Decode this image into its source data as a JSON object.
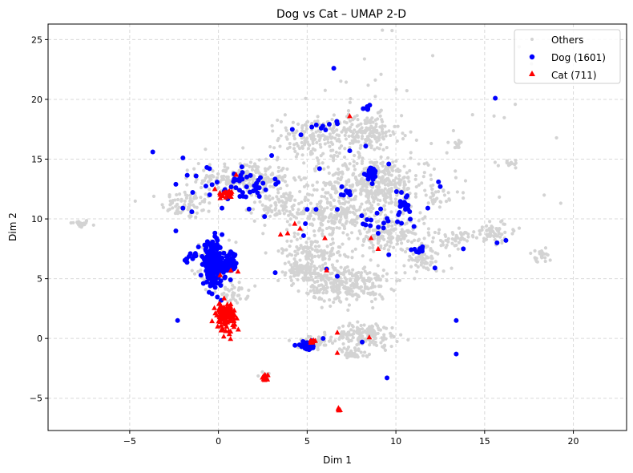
{
  "chart_data": {
    "type": "scatter",
    "title": "Dog vs Cat – UMAP 2-D",
    "xlabel": "Dim 1",
    "ylabel": "Dim 2",
    "xlim": [
      -9.6,
      23.0
    ],
    "ylim": [
      -7.7,
      26.3
    ],
    "xticks": [
      -5,
      0,
      5,
      10,
      15,
      20
    ],
    "yticks": [
      -5,
      0,
      5,
      10,
      15,
      20,
      25
    ],
    "grid": true,
    "legend_position": "top-right",
    "series": [
      {
        "name": "Others",
        "marker": "circle-small",
        "color": "#d3d3d3",
        "clusters": [
          {
            "cx": -7.8,
            "cy": 9.6,
            "rx": 0.5,
            "ry": 0.3,
            "n": 25
          },
          {
            "cx": -1.8,
            "cy": 11.2,
            "rx": 1.3,
            "ry": 1.1,
            "n": 80
          },
          {
            "cx": 1.5,
            "cy": 13.4,
            "rx": 2.4,
            "ry": 1.2,
            "n": 240
          },
          {
            "cx": 3.2,
            "cy": 11.0,
            "rx": 1.3,
            "ry": 1.2,
            "n": 90
          },
          {
            "cx": -0.2,
            "cy": 6.3,
            "rx": 1.0,
            "ry": 1.6,
            "n": 90
          },
          {
            "cx": 0.9,
            "cy": 3.8,
            "rx": 0.7,
            "ry": 0.8,
            "n": 40
          },
          {
            "cx": 5.4,
            "cy": 16.8,
            "rx": 1.8,
            "ry": 1.6,
            "n": 150
          },
          {
            "cx": 8.3,
            "cy": 17.2,
            "rx": 1.7,
            "ry": 1.4,
            "n": 150
          },
          {
            "cx": 8.8,
            "cy": 13.0,
            "rx": 2.6,
            "ry": 1.9,
            "n": 400
          },
          {
            "cx": 6.4,
            "cy": 10.4,
            "rx": 2.2,
            "ry": 1.4,
            "n": 200
          },
          {
            "cx": 9.8,
            "cy": 8.6,
            "rx": 1.9,
            "ry": 1.4,
            "n": 160
          },
          {
            "cx": 5.3,
            "cy": 7.3,
            "rx": 1.6,
            "ry": 1.1,
            "n": 120
          },
          {
            "cx": 7.2,
            "cy": 4.6,
            "rx": 2.1,
            "ry": 1.4,
            "n": 300
          },
          {
            "cx": 4.6,
            "cy": 5.6,
            "rx": 1.3,
            "ry": 0.8,
            "n": 90
          },
          {
            "cx": 8.4,
            "cy": 0.3,
            "rx": 1.6,
            "ry": 0.9,
            "n": 150
          },
          {
            "cx": 5.4,
            "cy": -0.3,
            "rx": 0.8,
            "ry": 0.5,
            "n": 50
          },
          {
            "cx": 7.5,
            "cy": -1.3,
            "rx": 0.8,
            "ry": 0.5,
            "n": 40
          },
          {
            "cx": 11.6,
            "cy": 6.6,
            "rx": 1.1,
            "ry": 1.0,
            "n": 70
          },
          {
            "cx": 13.3,
            "cy": 8.3,
            "rx": 1.0,
            "ry": 0.6,
            "n": 50
          },
          {
            "cx": 15.6,
            "cy": 8.9,
            "rx": 1.1,
            "ry": 0.8,
            "n": 60
          },
          {
            "cx": 18.1,
            "cy": 6.9,
            "rx": 0.6,
            "ry": 0.6,
            "n": 25
          },
          {
            "cx": 12.3,
            "cy": 11.8,
            "rx": 0.6,
            "ry": 0.6,
            "n": 25
          },
          {
            "cx": 13.5,
            "cy": 16.3,
            "rx": 0.3,
            "ry": 0.3,
            "n": 10
          },
          {
            "cx": 16.5,
            "cy": 14.6,
            "rx": 0.6,
            "ry": 0.3,
            "n": 15
          },
          {
            "cx": 2.7,
            "cy": -3.1,
            "rx": 0.4,
            "ry": 0.3,
            "n": 15
          },
          {
            "cx": 8.5,
            "cy": 14.5,
            "rx": 8.0,
            "ry": 8.0,
            "n": 130
          }
        ]
      },
      {
        "name": "Dog (1601)",
        "marker": "circle",
        "color": "#0000ff",
        "clusters": [
          {
            "cx": -0.3,
            "cy": 6.2,
            "rx": 0.5,
            "ry": 1.6,
            "n": 220
          },
          {
            "cx": 0.6,
            "cy": 6.2,
            "rx": 0.4,
            "ry": 0.9,
            "n": 60
          },
          {
            "cx": -1.5,
            "cy": 6.6,
            "rx": 0.4,
            "ry": 0.5,
            "n": 12
          },
          {
            "cx": 1.5,
            "cy": 12.9,
            "rx": 2.0,
            "ry": 1.1,
            "n": 50
          },
          {
            "cx": 5.0,
            "cy": -0.6,
            "rx": 0.5,
            "ry": 0.3,
            "n": 35
          },
          {
            "cx": 8.6,
            "cy": 13.8,
            "rx": 0.3,
            "ry": 0.6,
            "n": 25
          },
          {
            "cx": 10.4,
            "cy": 11.3,
            "rx": 0.5,
            "ry": 0.9,
            "n": 20
          },
          {
            "cx": 9.3,
            "cy": 9.6,
            "rx": 1.2,
            "ry": 0.8,
            "n": 15
          },
          {
            "cx": 11.3,
            "cy": 7.4,
            "rx": 0.3,
            "ry": 0.2,
            "n": 8
          },
          {
            "cx": 6.0,
            "cy": 17.8,
            "rx": 1.0,
            "ry": 0.6,
            "n": 10
          },
          {
            "cx": 8.4,
            "cy": 19.3,
            "rx": 0.2,
            "ry": 0.2,
            "n": 8
          },
          {
            "cx": 7.1,
            "cy": 12.2,
            "rx": 0.3,
            "ry": 0.3,
            "n": 8
          }
        ],
        "points": [
          [
            -3.7,
            15.6
          ],
          [
            -2.0,
            15.1
          ],
          [
            -0.5,
            14.2
          ],
          [
            -2.4,
            12.9
          ],
          [
            -2.0,
            10.9
          ],
          [
            -1.5,
            10.6
          ],
          [
            0.2,
            10.9
          ],
          [
            -2.4,
            9.0
          ],
          [
            -2.3,
            1.5
          ],
          [
            3.0,
            15.3
          ],
          [
            2.6,
            10.2
          ],
          [
            3.2,
            5.5
          ],
          [
            5.0,
            10.8
          ],
          [
            5.5,
            10.8
          ],
          [
            4.9,
            9.6
          ],
          [
            4.8,
            8.6
          ],
          [
            6.1,
            5.8
          ],
          [
            6.7,
            5.2
          ],
          [
            5.9,
            0.0
          ],
          [
            6.5,
            22.6
          ],
          [
            5.7,
            14.2
          ],
          [
            7.4,
            15.7
          ],
          [
            8.3,
            16.1
          ],
          [
            9.6,
            14.6
          ],
          [
            6.7,
            10.8
          ],
          [
            8.3,
            9.5
          ],
          [
            9.0,
            8.8
          ],
          [
            9.6,
            7.0
          ],
          [
            11.8,
            10.9
          ],
          [
            12.4,
            13.1
          ],
          [
            12.5,
            12.7
          ],
          [
            12.2,
            5.9
          ],
          [
            13.8,
            7.5
          ],
          [
            15.6,
            20.1
          ],
          [
            15.7,
            8.0
          ],
          [
            16.2,
            8.2
          ],
          [
            13.4,
            1.5
          ],
          [
            13.4,
            -1.3
          ],
          [
            9.5,
            -3.3
          ],
          [
            8.1,
            -0.3
          ],
          [
            8.6,
            9.9
          ]
        ]
      },
      {
        "name": "Cat (711)",
        "marker": "triangle",
        "color": "#ff0000",
        "clusters": [
          {
            "cx": 0.4,
            "cy": 1.9,
            "rx": 0.5,
            "ry": 1.0,
            "n": 120
          },
          {
            "cx": 0.5,
            "cy": 12.1,
            "rx": 0.3,
            "ry": 0.4,
            "n": 20
          },
          {
            "cx": 2.6,
            "cy": -3.2,
            "rx": 0.2,
            "ry": 0.2,
            "n": 12
          },
          {
            "cx": 5.3,
            "cy": -0.3,
            "rx": 0.2,
            "ry": 0.2,
            "n": 8
          },
          {
            "cx": 6.8,
            "cy": -5.9,
            "rx": 0.1,
            "ry": 0.1,
            "n": 4
          }
        ],
        "points": [
          [
            -0.2,
            12.5
          ],
          [
            1.0,
            13.7
          ],
          [
            0.1,
            5.3
          ],
          [
            0.7,
            5.7
          ],
          [
            1.1,
            5.6
          ],
          [
            3.5,
            8.7
          ],
          [
            3.9,
            8.8
          ],
          [
            4.3,
            9.6
          ],
          [
            4.6,
            9.2
          ],
          [
            6.0,
            8.4
          ],
          [
            6.1,
            5.7
          ],
          [
            6.7,
            0.5
          ],
          [
            6.7,
            -1.2
          ],
          [
            7.4,
            18.6
          ],
          [
            8.5,
            0.1
          ],
          [
            8.6,
            8.4
          ],
          [
            9.0,
            7.5
          ]
        ]
      }
    ]
  }
}
